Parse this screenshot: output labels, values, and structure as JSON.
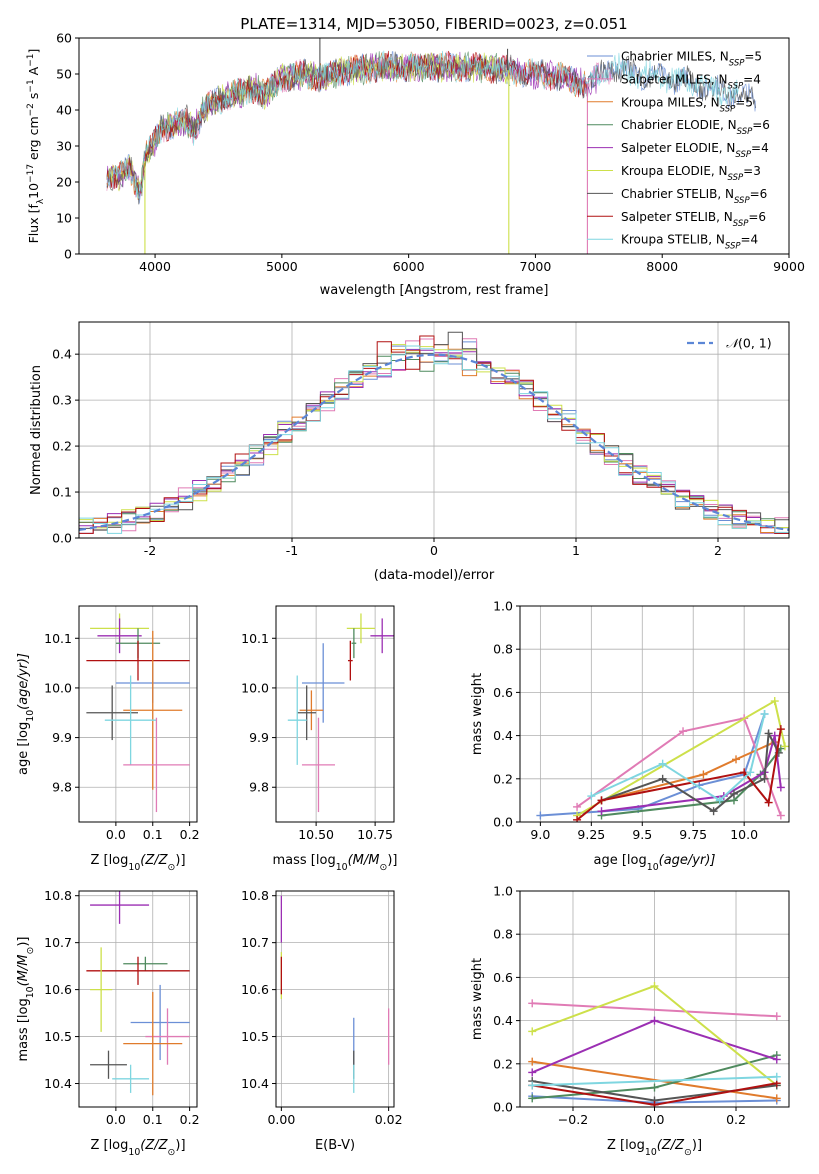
{
  "figure_title": "PLATE=1314, MJD=53050, FIBERID=0023, z=0.051",
  "colors": {
    "Chabrier MILES": "#6b8fd6",
    "Salpeter MILES": "#e07bb5",
    "Kroupa MILES": "#e07b2c",
    "Chabrier ELODIE": "#4f8a5e",
    "Salpeter ELODIE": "#9b2fb3",
    "Kroupa ELODIE": "#cde04a",
    "Chabrier STELIB": "#555555",
    "Salpeter STELIB": "#b01010",
    "Kroupa STELIB": "#7fd6e0",
    "gaussian": "#5b86d6",
    "grid": "#b0b0b0"
  },
  "chart_data": [
    {
      "type": "line",
      "title": "PLATE=1314, MJD=53050, FIBERID=0023, z=0.051",
      "xlabel": "wavelength [Angstrom, rest frame]",
      "ylabel_parts": [
        "Flux [f",
        "λ",
        "10",
        "−17",
        " erg cm",
        "−2",
        " s",
        "−1",
        " A",
        "−1",
        "]"
      ],
      "xlim": [
        3400,
        9000
      ],
      "ylim": [
        0,
        60
      ],
      "xticks": [
        4000,
        5000,
        6000,
        7000,
        8000,
        9000
      ],
      "yticks": [
        0,
        10,
        20,
        30,
        40,
        50,
        60
      ],
      "grid": false,
      "legend_position": "upper-right",
      "legend": [
        {
          "model": "Chabrier MILES",
          "n": "5"
        },
        {
          "model": "Salpeter MILES",
          "n": "4"
        },
        {
          "model": "Kroupa MILES",
          "n": "5"
        },
        {
          "model": "Chabrier ELODIE",
          "n": "6"
        },
        {
          "model": "Salpeter ELODIE",
          "n": "4"
        },
        {
          "model": "Kroupa ELODIE",
          "n": "3"
        },
        {
          "model": "Chabrier STELIB",
          "n": "6"
        },
        {
          "model": "Salpeter STELIB",
          "n": "6"
        },
        {
          "model": "Kroupa STELIB",
          "n": "4"
        }
      ],
      "continuum": [
        [
          3620,
          22
        ],
        [
          3700,
          21
        ],
        [
          3800,
          24
        ],
        [
          3880,
          17
        ],
        [
          3930,
          28
        ],
        [
          3980,
          30
        ],
        [
          4050,
          35
        ],
        [
          4150,
          36
        ],
        [
          4250,
          37
        ],
        [
          4300,
          34
        ],
        [
          4400,
          41
        ],
        [
          4600,
          44
        ],
        [
          4800,
          46
        ],
        [
          4860,
          44
        ],
        [
          5000,
          49
        ],
        [
          5200,
          50
        ],
        [
          5300,
          49
        ],
        [
          5500,
          51
        ],
        [
          5800,
          52
        ],
        [
          6000,
          52
        ],
        [
          6300,
          52
        ],
        [
          6560,
          52
        ],
        [
          6800,
          51
        ],
        [
          7000,
          50
        ],
        [
          7200,
          49
        ],
        [
          7400,
          47
        ],
        [
          7600,
          52
        ],
        [
          7800,
          50
        ],
        [
          8000,
          49
        ],
        [
          8200,
          48
        ],
        [
          8400,
          46
        ],
        [
          8600,
          44
        ],
        [
          8740,
          43
        ]
      ],
      "spike_features": [
        {
          "x": 5300,
          "y": 62
        },
        {
          "x": 6780,
          "y": 57
        },
        {
          "x": 6790,
          "y": 0
        },
        {
          "x": 7410,
          "y": 0
        },
        {
          "x": 3920,
          "y": 0
        }
      ]
    },
    {
      "type": "histogram",
      "xlabel": "(data-model)/error",
      "ylabel": "Normed distribution",
      "xlim": [
        -2.5,
        2.5
      ],
      "ylim": [
        0,
        0.47
      ],
      "xticks": [
        -2,
        -1,
        0,
        1,
        2
      ],
      "yticks": [
        0.0,
        0.1,
        0.2,
        0.3,
        0.4
      ],
      "grid": true,
      "legend_position": "upper-right",
      "reference_curve": {
        "name_prefix": "𝒩",
        "name_args": "(0, 1)",
        "mean": 0,
        "sigma": 1
      },
      "bin_width": 0.1,
      "bin_start": -2.5
    },
    {
      "type": "scatter",
      "xlabel_prefix": "Z [log",
      "xlabel_sub": "10",
      "xlabel_suffix": "(Z/Z",
      "xlabel_sym": "⊙",
      "xlabel_end": ")]",
      "ylabel_prefix": "age  [log",
      "ylabel_sub": "10",
      "ylabel_suffix": "(age/yr)]",
      "xlim": [
        -0.1,
        0.22
      ],
      "ylim": [
        9.73,
        10.165
      ],
      "xticks": [
        0.0,
        0.1,
        0.2
      ],
      "yticks": [
        9.8,
        9.9,
        10.0,
        10.1
      ],
      "grid": true,
      "points": [
        {
          "model": "Kroupa ELODIE",
          "x": 0.01,
          "xerr": 0.08,
          "y": 10.12,
          "yerr": 0.03
        },
        {
          "model": "Salpeter ELODIE",
          "x": 0.01,
          "xerr": 0.06,
          "y": 10.105,
          "yerr": 0.035
        },
        {
          "model": "Chabrier ELODIE",
          "x": 0.06,
          "xerr": 0.06,
          "y": 10.09,
          "yerr": 0.03
        },
        {
          "model": "Salpeter STELIB",
          "x": 0.06,
          "xerr": 0.14,
          "y": 10.055,
          "yerr": 0.04
        },
        {
          "model": "Chabrier MILES",
          "x": 0.1,
          "xerr": 0.1,
          "y": 10.01,
          "yerr": 0.04
        },
        {
          "model": "Kroupa MILES",
          "x": 0.1,
          "xerr": 0.08,
          "y": 9.955,
          "yerr": 0.16
        },
        {
          "model": "Chabrier STELIB",
          "x": -0.01,
          "xerr": 0.07,
          "y": 9.95,
          "yerr": 0.055
        },
        {
          "model": "Kroupa STELIB",
          "x": 0.04,
          "xerr": 0.07,
          "y": 9.935,
          "yerr": 0.09
        },
        {
          "model": "Salpeter MILES",
          "x": 0.11,
          "xerr": 0.09,
          "y": 9.845,
          "yerr": 0.095
        }
      ]
    },
    {
      "type": "scatter",
      "xlabel_prefix": "mass [log",
      "xlabel_sub": "10",
      "xlabel_suffix": "(M/M",
      "xlabel_sym": "⊙",
      "xlabel_end": ")]",
      "xlim": [
        10.33,
        10.83
      ],
      "ylim": [
        9.73,
        10.165
      ],
      "xticks": [
        10.5,
        10.75
      ],
      "yticks": [
        9.8,
        9.9,
        10.0,
        10.1
      ],
      "grid": true,
      "points": [
        {
          "model": "Kroupa ELODIE",
          "x": 10.69,
          "xerr": 0.06,
          "y": 10.12,
          "yerr": 0.03
        },
        {
          "model": "Salpeter ELODIE",
          "x": 10.78,
          "xerr": 0.05,
          "y": 10.105,
          "yerr": 0.035
        },
        {
          "model": "Chabrier ELODIE",
          "x": 10.66,
          "xerr": 0.01,
          "y": 10.09,
          "yerr": 0.03
        },
        {
          "model": "Salpeter STELIB",
          "x": 10.645,
          "xerr": 0.01,
          "y": 10.055,
          "yerr": 0.04
        },
        {
          "model": "Chabrier MILES",
          "x": 10.53,
          "xerr": 0.09,
          "y": 10.01,
          "yerr": 0.08
        },
        {
          "model": "Kroupa MILES",
          "x": 10.48,
          "xerr": 0.05,
          "y": 9.955,
          "yerr": 0.04
        },
        {
          "model": "Chabrier STELIB",
          "x": 10.46,
          "xerr": 0.04,
          "y": 9.95,
          "yerr": 0.055
        },
        {
          "model": "Kroupa STELIB",
          "x": 10.42,
          "xerr": 0.04,
          "y": 9.935,
          "yerr": 0.09
        },
        {
          "model": "Salpeter MILES",
          "x": 10.51,
          "xerr": 0.07,
          "y": 9.845,
          "yerr": 0.095
        }
      ]
    },
    {
      "type": "line",
      "xlabel_prefix": "age  [log",
      "xlabel_sub": "10",
      "xlabel_suffix": "(age/yr)]",
      "ylabel": "mass weight",
      "xlim": [
        8.9,
        10.22
      ],
      "ylim": [
        0,
        1.0
      ],
      "xticks": [
        9.0,
        9.25,
        9.5,
        9.75,
        10.0
      ],
      "yticks": [
        0.0,
        0.2,
        0.4,
        0.6,
        0.8,
        1.0
      ],
      "grid": true,
      "series": [
        {
          "model": "Chabrier MILES",
          "x": [
            9.0,
            9.48,
            9.78,
            10.0,
            10.1
          ],
          "y": [
            0.03,
            0.06,
            0.17,
            0.22,
            0.5
          ]
        },
        {
          "model": "Salpeter MILES",
          "x": [
            9.18,
            9.7,
            10.0,
            10.18
          ],
          "y": [
            0.07,
            0.42,
            0.48,
            0.03
          ]
        },
        {
          "model": "Kroupa MILES",
          "x": [
            9.3,
            9.8,
            9.96,
            10.15
          ],
          "y": [
            0.1,
            0.22,
            0.29,
            0.37
          ]
        },
        {
          "model": "Chabrier ELODIE",
          "x": [
            9.3,
            9.95,
            10.08,
            10.18
          ],
          "y": [
            0.03,
            0.1,
            0.22,
            0.34
          ]
        },
        {
          "model": "Salpeter ELODIE",
          "x": [
            9.3,
            9.9,
            10.1,
            10.15,
            10.18
          ],
          "y": [
            0.05,
            0.12,
            0.23,
            0.4,
            0.16
          ]
        },
        {
          "model": "Kroupa ELODIE",
          "x": [
            9.18,
            10.15,
            10.2
          ],
          "y": [
            0.03,
            0.56,
            0.35
          ]
        },
        {
          "model": "Chabrier STELIB",
          "x": [
            9.3,
            9.6,
            9.85,
            9.95,
            10.1,
            10.12,
            10.17
          ],
          "y": [
            0.1,
            0.2,
            0.05,
            0.13,
            0.2,
            0.41,
            0.32
          ]
        },
        {
          "model": "Salpeter STELIB",
          "x": [
            9.18,
            9.3,
            10.0,
            10.12,
            10.18
          ],
          "y": [
            0.01,
            0.1,
            0.23,
            0.09,
            0.43
          ]
        },
        {
          "model": "Kroupa STELIB",
          "x": [
            9.25,
            9.6,
            9.88,
            10.03,
            10.1
          ],
          "y": [
            0.12,
            0.27,
            0.1,
            0.23,
            0.5
          ]
        }
      ]
    },
    {
      "type": "scatter",
      "xlabel_prefix": "Z [log",
      "xlabel_sub": "10",
      "xlabel_suffix": "(Z/Z",
      "xlabel_sym": "⊙",
      "xlabel_end": ")]",
      "ylabel_prefix": "mass [log",
      "ylabel_sub": "10",
      "ylabel_suffix": "(M/M",
      "ylabel_sym": "⊙",
      "ylabel_end": ")]",
      "xlim": [
        -0.1,
        0.22
      ],
      "ylim": [
        10.35,
        10.81
      ],
      "xticks": [
        0.0,
        0.1,
        0.2
      ],
      "yticks": [
        10.4,
        10.5,
        10.6,
        10.7,
        10.8
      ],
      "grid": true,
      "points": [
        {
          "model": "Salpeter ELODIE",
          "x": 0.01,
          "xerr": 0.08,
          "y": 10.78,
          "yerr": 0.04
        },
        {
          "model": "Chabrier ELODIE",
          "x": 0.08,
          "xerr": 0.06,
          "y": 10.655,
          "yerr": 0.015
        },
        {
          "model": "Salpeter STELIB",
          "x": 0.06,
          "xerr": 0.14,
          "y": 10.64,
          "yerr": 0.03
        },
        {
          "model": "Kroupa ELODIE",
          "x": -0.04,
          "xerr": 0.03,
          "y": 10.6,
          "yerr": 0.09
        },
        {
          "model": "Chabrier MILES",
          "x": 0.12,
          "xerr": 0.08,
          "y": 10.53,
          "yerr": 0.08
        },
        {
          "model": "Salpeter MILES",
          "x": 0.14,
          "xerr": 0.06,
          "y": 10.5,
          "yerr": 0.06
        },
        {
          "model": "Kroupa MILES",
          "x": 0.1,
          "xerr": 0.08,
          "y": 10.485,
          "yerr": 0.11
        },
        {
          "model": "Chabrier STELIB",
          "x": -0.02,
          "xerr": 0.05,
          "y": 10.44,
          "yerr": 0.03
        },
        {
          "model": "Kroupa STELIB",
          "x": 0.04,
          "xerr": 0.05,
          "y": 10.41,
          "yerr": 0.03
        }
      ]
    },
    {
      "type": "scatter",
      "xlabel": "E(B-V)",
      "xlim": [
        -0.001,
        0.021
      ],
      "ylim": [
        10.35,
        10.81
      ],
      "xticks": [
        0.0,
        0.02
      ],
      "yticks": [
        10.4,
        10.5,
        10.6,
        10.7,
        10.8
      ],
      "grid": true,
      "points": [
        {
          "model": "Salpeter ELODIE",
          "x": 0.0,
          "xerr": 0.0,
          "y": 10.75,
          "yerr": 0.05
        },
        {
          "model": "Kroupa ELODIE",
          "x": 0.0,
          "xerr": 0.0,
          "y": 10.63,
          "yerr": 0.05
        },
        {
          "model": "Salpeter STELIB",
          "x": 0.0,
          "xerr": 0.0,
          "y": 10.63,
          "yerr": 0.04
        },
        {
          "model": "Chabrier MILES",
          "x": 0.0135,
          "xerr": 0.0,
          "y": 10.49,
          "yerr": 0.05
        },
        {
          "model": "Salpeter MILES",
          "x": 0.02,
          "xerr": 0.0,
          "y": 10.5,
          "yerr": 0.06
        },
        {
          "model": "Chabrier STELIB",
          "x": 0.0135,
          "xerr": 0.0,
          "y": 10.44,
          "yerr": 0.03
        },
        {
          "model": "Kroupa STELIB",
          "x": 0.0135,
          "xerr": 0.0,
          "y": 10.41,
          "yerr": 0.03
        }
      ]
    },
    {
      "type": "line",
      "xlabel_prefix": "Z [log",
      "xlabel_sub": "10",
      "xlabel_suffix": "(Z/Z",
      "xlabel_sym": "⊙",
      "xlabel_end": ")]",
      "ylabel": "mass weight",
      "xlim": [
        -0.33,
        0.33
      ],
      "ylim": [
        0,
        1.0
      ],
      "xticks": [
        -0.2,
        0.0,
        0.2
      ],
      "yticks": [
        0.0,
        0.2,
        0.4,
        0.6,
        0.8,
        1.0
      ],
      "grid": true,
      "series": [
        {
          "model": "Chabrier MILES",
          "x": [
            -0.3,
            0.0,
            0.3
          ],
          "y": [
            0.05,
            0.02,
            0.03
          ]
        },
        {
          "model": "Salpeter MILES",
          "x": [
            -0.3,
            0.3
          ],
          "y": [
            0.48,
            0.42
          ]
        },
        {
          "model": "Kroupa MILES",
          "x": [
            -0.3,
            0.3
          ],
          "y": [
            0.21,
            0.04
          ]
        },
        {
          "model": "Chabrier ELODIE",
          "x": [
            -0.3,
            0.0,
            0.3
          ],
          "y": [
            0.04,
            0.09,
            0.24
          ]
        },
        {
          "model": "Salpeter ELODIE",
          "x": [
            -0.3,
            0.0,
            0.3
          ],
          "y": [
            0.16,
            0.4,
            0.22
          ]
        },
        {
          "model": "Kroupa ELODIE",
          "x": [
            -0.3,
            0.0,
            0.3
          ],
          "y": [
            0.35,
            0.56,
            0.1
          ]
        },
        {
          "model": "Chabrier STELIB",
          "x": [
            -0.3,
            0.0,
            0.3
          ],
          "y": [
            0.12,
            0.03,
            0.1
          ]
        },
        {
          "model": "Salpeter STELIB",
          "x": [
            -0.3,
            0.0,
            0.3
          ],
          "y": [
            0.1,
            0.01,
            0.11
          ]
        },
        {
          "model": "Kroupa STELIB",
          "x": [
            -0.3,
            0.3
          ],
          "y": [
            0.1,
            0.14
          ]
        }
      ]
    }
  ]
}
